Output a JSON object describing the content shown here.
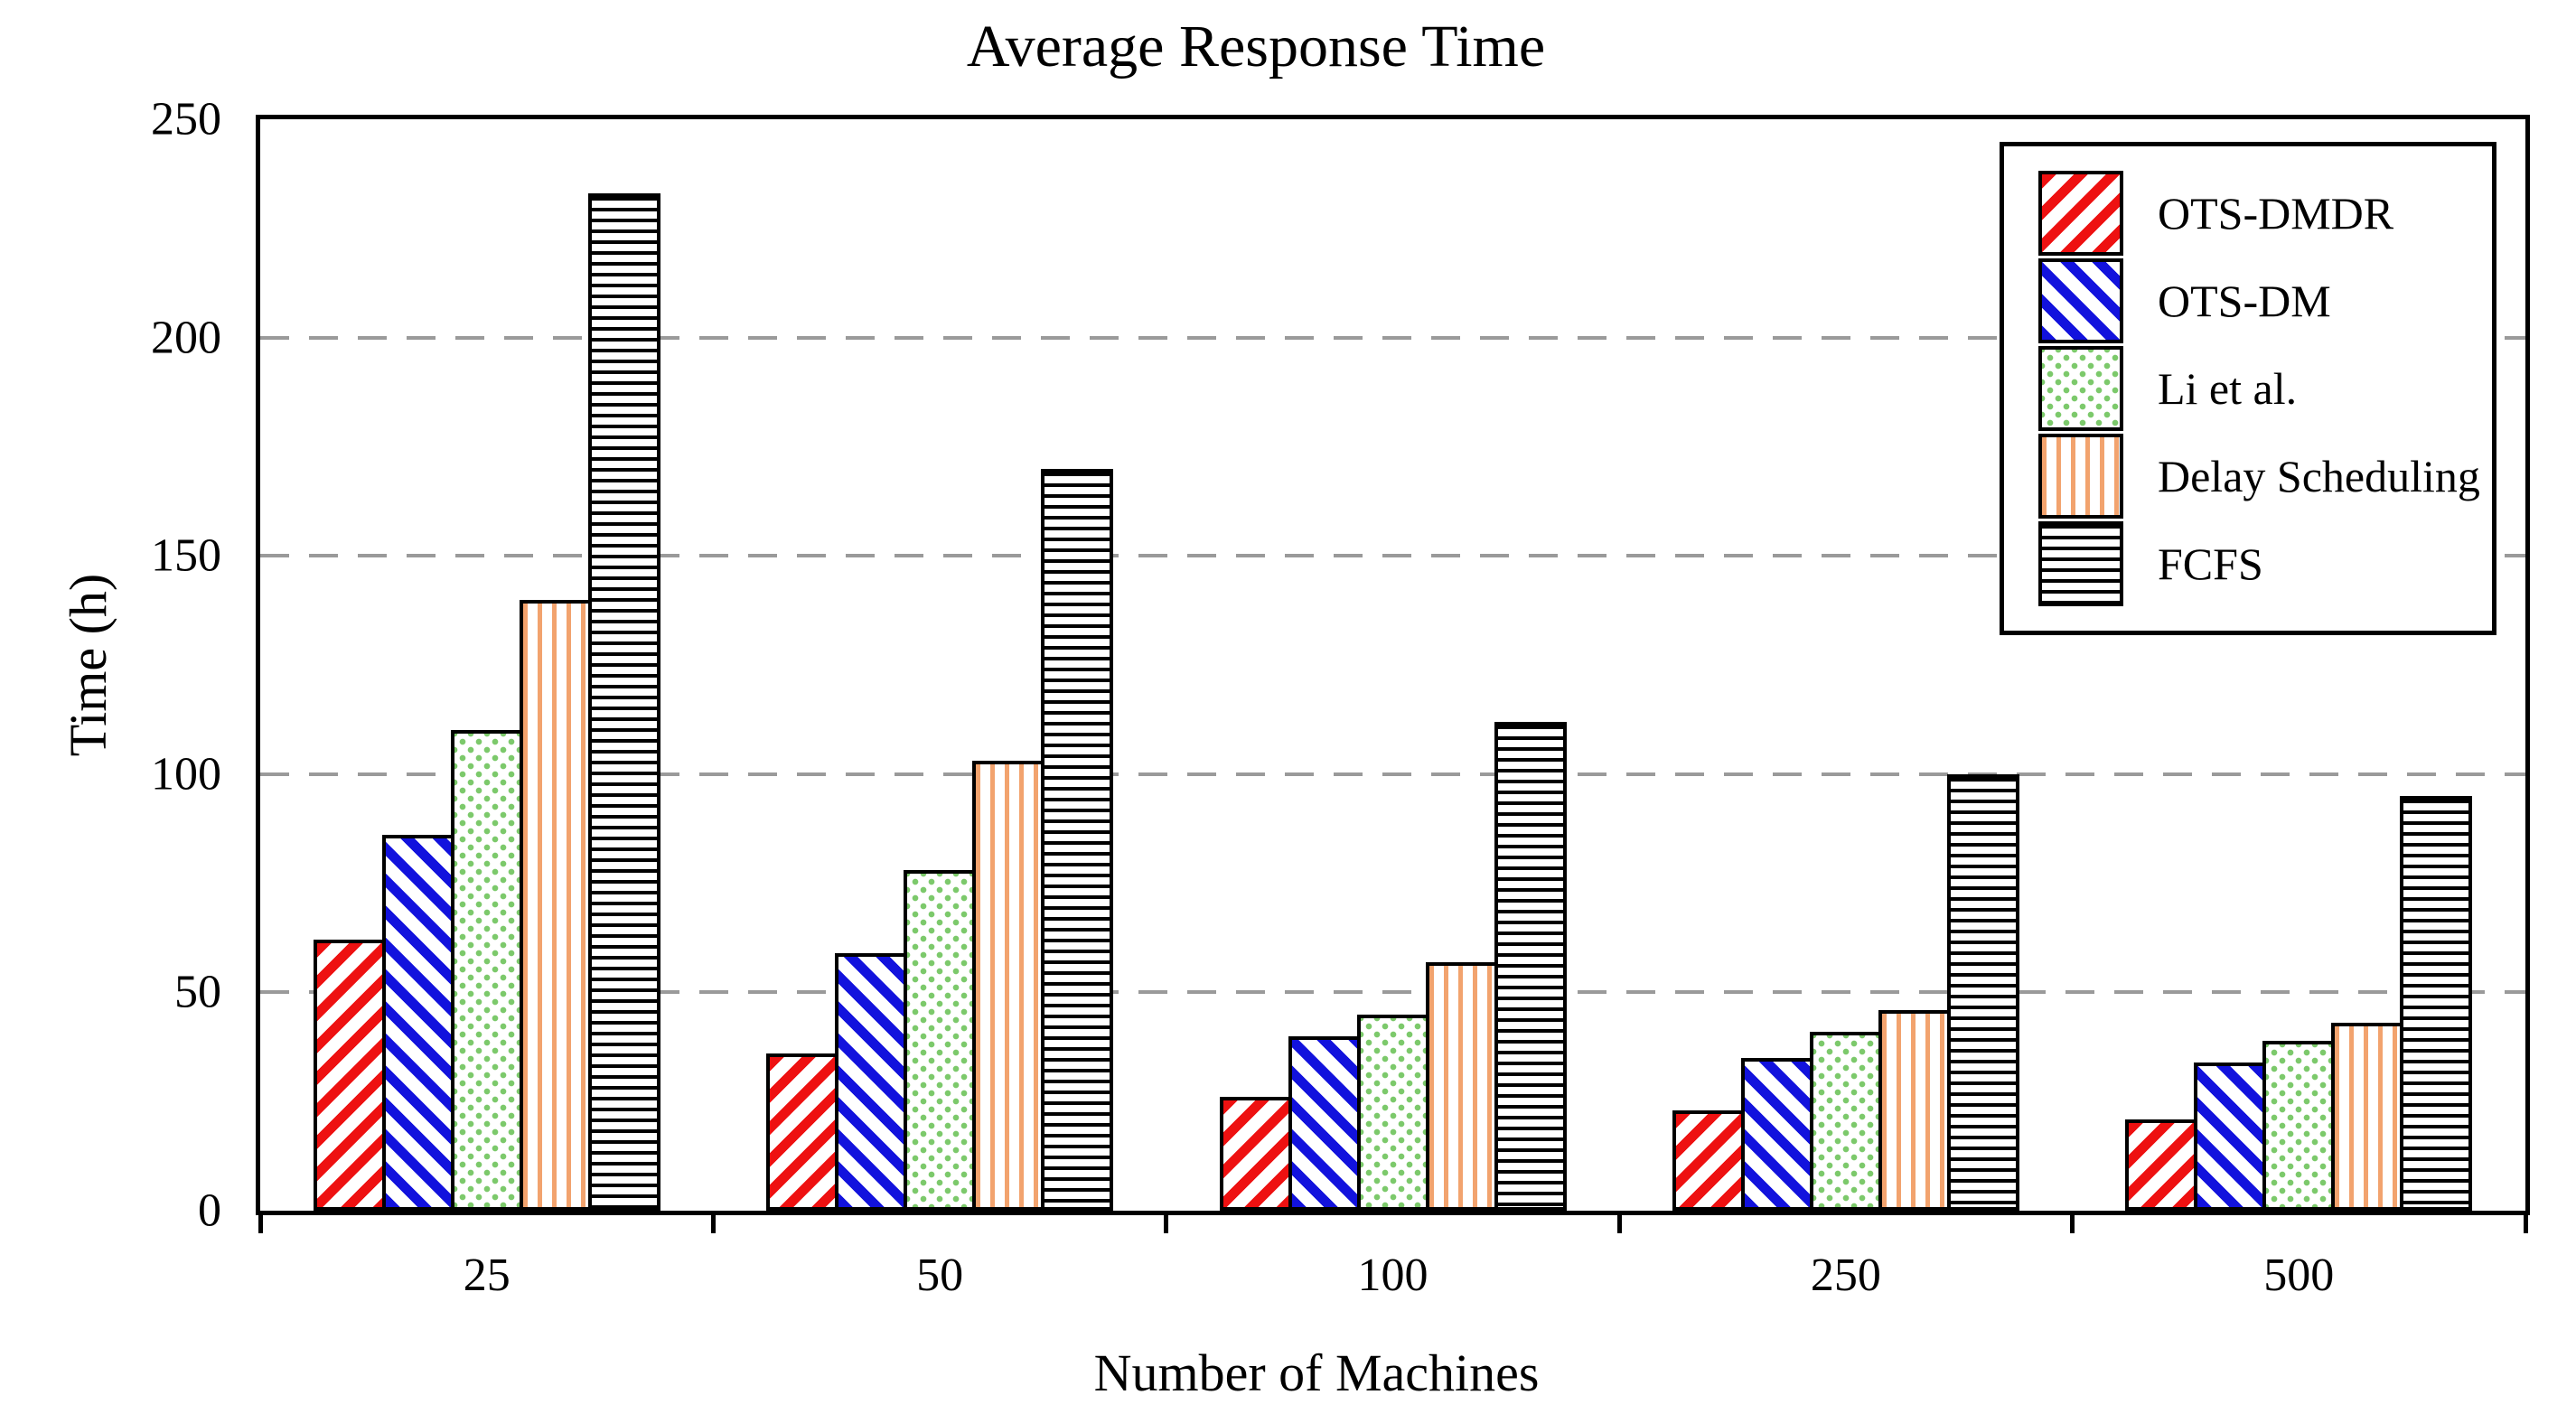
{
  "chart_data": {
    "type": "bar",
    "title": "Average Response Time",
    "xlabel": "Number of Machines",
    "ylabel": "Time (h)",
    "categories": [
      "25",
      "50",
      "100",
      "250",
      "500"
    ],
    "series": [
      {
        "name": "OTS-DMDR",
        "pattern": "red-diagonal-stripes",
        "color": "#ee1111",
        "values": [
          62,
          36,
          26,
          23,
          21
        ]
      },
      {
        "name": "OTS-DM",
        "pattern": "blue-diagonal-stripes",
        "color": "#1212dd",
        "values": [
          86,
          59,
          40,
          35,
          34
        ]
      },
      {
        "name": "Li et al.",
        "pattern": "green-dots",
        "color": "#7cc96b",
        "values": [
          110,
          78,
          45,
          41,
          39
        ]
      },
      {
        "name": "Delay Scheduling",
        "pattern": "orange-vertical-stripes",
        "color": "#f2a36e",
        "values": [
          140,
          103,
          57,
          46,
          43
        ]
      },
      {
        "name": "FCFS",
        "pattern": "black-horizontal-stripes",
        "color": "#000000",
        "values": [
          233,
          170,
          112,
          100,
          95
        ]
      }
    ],
    "ylim": [
      0,
      250
    ],
    "y_ticks": [
      0,
      50,
      100,
      150,
      200,
      250
    ],
    "grid": "dashed-horizontal-at-50-100-150-200",
    "legend_position": "upper-right"
  },
  "colors": {
    "background": "#ffffff",
    "axis": "#000000",
    "gridline": "#9a9a9a"
  }
}
